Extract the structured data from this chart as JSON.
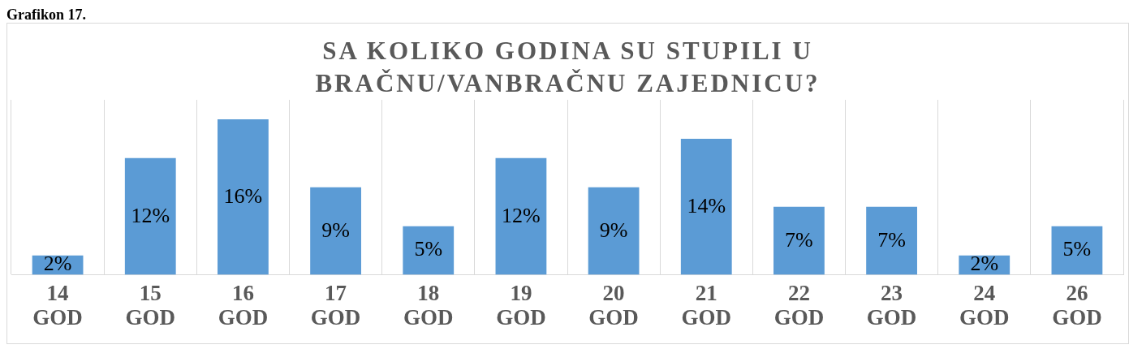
{
  "chart_data": {
    "type": "bar",
    "title": "SA KOLIKO GODINA SU STUPILI U BRAČNU/VANBRAČNU ZAJEDNICU?",
    "annotations": [
      "Grafikon 17."
    ],
    "categories": [
      "14 GOD",
      "15 GOD",
      "16 GOD",
      "17 GOD",
      "18 GOD",
      "19 GOD",
      "20 GOD",
      "21 GOD",
      "22 GOD",
      "23 GOD",
      "24 GOD",
      "26 GOD"
    ],
    "values": [
      2,
      12,
      16,
      9,
      5,
      12,
      9,
      14,
      7,
      7,
      2,
      5
    ],
    "value_labels": [
      "2%",
      "12%",
      "16%",
      "9%",
      "5%",
      "12%",
      "9%",
      "14%",
      "7%",
      "7%",
      "2%",
      "5%"
    ],
    "color": "#5b9bd5",
    "grid": "x"
  }
}
